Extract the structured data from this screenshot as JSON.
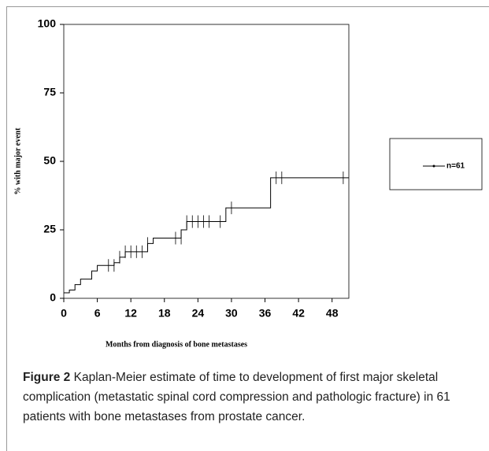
{
  "chart_data": {
    "type": "step",
    "x_label": "Months from diagnosis of bone metastases",
    "y_label": "% with major event",
    "xlim": [
      0,
      51
    ],
    "ylim": [
      0,
      100
    ],
    "xticks": [
      0,
      6,
      12,
      18,
      24,
      30,
      36,
      42,
      48
    ],
    "yticks": [
      0,
      25,
      50,
      75,
      100
    ],
    "series": [
      {
        "name": "n=61",
        "color": "#000000",
        "x": [
          0,
          1,
          2,
          3,
          5,
          6,
          9,
          10,
          11,
          15,
          16,
          21,
          22,
          29,
          37,
          51
        ],
        "values": [
          2,
          3,
          5,
          7,
          10,
          12,
          13,
          15,
          17,
          20,
          22,
          25,
          28,
          33,
          44,
          44
        ]
      }
    ],
    "censored": {
      "x": [
        8,
        9,
        10,
        11,
        12,
        13,
        14,
        15,
        20,
        21,
        22,
        23,
        24,
        25,
        26,
        28,
        30,
        38,
        39,
        50
      ],
      "values": [
        12,
        12,
        15,
        17,
        17,
        17,
        17,
        20,
        22,
        22,
        28,
        28,
        28,
        28,
        28,
        28,
        33,
        44,
        44,
        44
      ]
    },
    "legend": "right"
  },
  "caption": {
    "label": "Figure 2",
    "text": "Kaplan-Meier estimate of time to development of first major skeletal complication (metastatic spinal cord compression and pathologic fracture) in 61 patients with bone metastases from prostate cancer."
  }
}
